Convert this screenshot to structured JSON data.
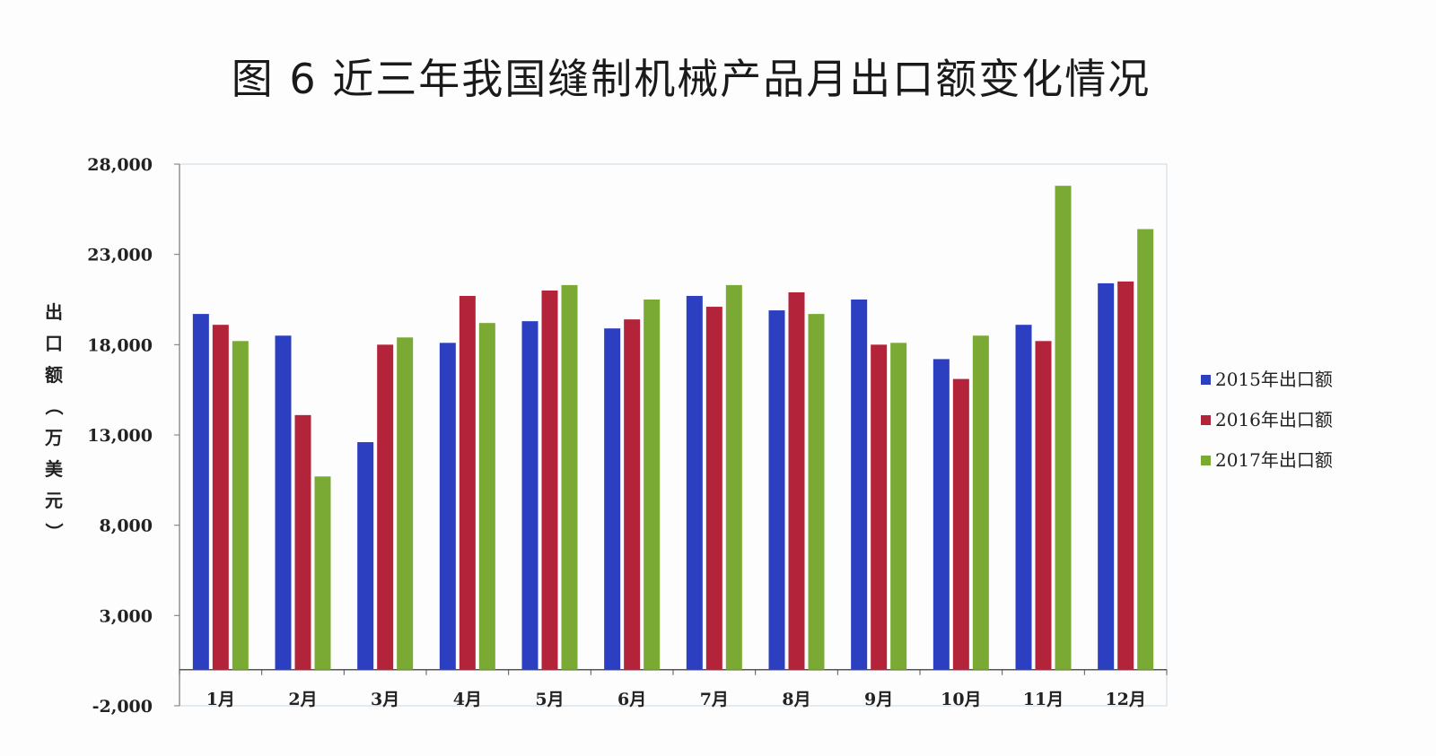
{
  "title": "图 6  近三年我国缝制机械产品月出口额变化情况",
  "chart_data": {
    "type": "bar",
    "ylabel": "出口额（万美元）",
    "ylim": [
      -2000,
      28000
    ],
    "yticks": [
      -2000,
      3000,
      8000,
      13000,
      18000,
      23000,
      28000
    ],
    "ytick_labels": [
      "-2,000",
      "3,000",
      "8,000",
      "13,000",
      "18,000",
      "23,000",
      "28,000"
    ],
    "categories": [
      "1月",
      "2月",
      "3月",
      "4月",
      "5月",
      "6月",
      "7月",
      "8月",
      "9月",
      "10月",
      "11月",
      "12月"
    ],
    "series": [
      {
        "name": "2015年出口额",
        "color": "#2b3fc0",
        "values": [
          19700,
          18500,
          12600,
          18100,
          19300,
          18900,
          20700,
          19900,
          20500,
          17200,
          19100,
          21400
        ]
      },
      {
        "name": "2016年出口额",
        "color": "#b3243a",
        "values": [
          19100,
          14100,
          18000,
          20700,
          21000,
          19400,
          20100,
          20900,
          18000,
          16100,
          18200,
          21500
        ]
      },
      {
        "name": "2017年出口额",
        "color": "#7aaa33",
        "values": [
          18200,
          10700,
          18400,
          19200,
          21300,
          20500,
          21300,
          19700,
          18100,
          18500,
          26800,
          24400
        ]
      }
    ],
    "legend_position": "right",
    "grid": false
  }
}
